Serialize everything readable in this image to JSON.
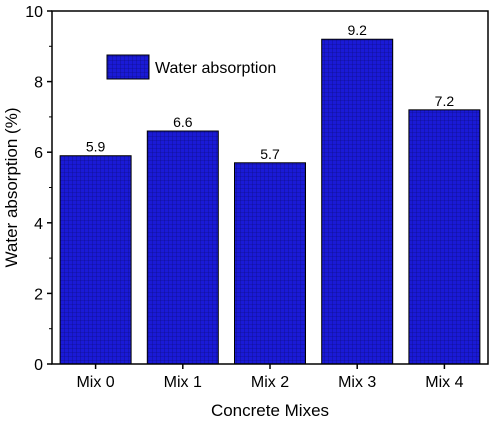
{
  "chart_data": {
    "type": "bar",
    "categories": [
      "Mix 0",
      "Mix 1",
      "Mix 2",
      "Mix 3",
      "Mix 4"
    ],
    "series": [
      {
        "name": "Water absorption",
        "values": [
          5.9,
          6.6,
          5.7,
          9.2,
          7.2
        ]
      }
    ],
    "data_labels": [
      "5.9",
      "6.6",
      "5.7",
      "9.2",
      "7.2"
    ],
    "xlabel": "Concrete Mixes",
    "ylabel": "Water absorption (%)",
    "ylim": [
      0,
      10
    ],
    "yticks": [
      0,
      2,
      4,
      6,
      8,
      10
    ],
    "grid": false,
    "legend_position": "top-left",
    "bar_color": "#1a1ad6",
    "bar_hatch": "grid"
  }
}
